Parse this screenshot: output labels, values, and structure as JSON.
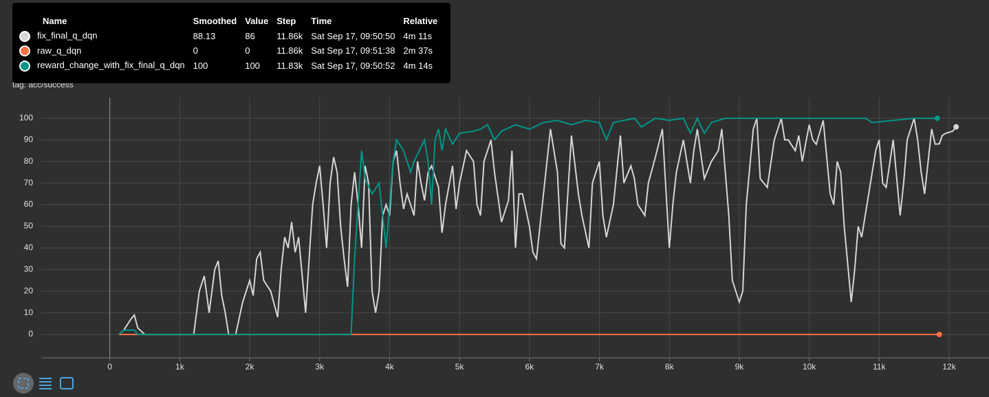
{
  "chart_data": {
    "type": "line",
    "title": "success",
    "subtitle": "tag: acc/success",
    "xlim": [
      -980,
      12570
    ],
    "ylim": [
      -10.8,
      109.5
    ],
    "xticks": [
      0,
      {
        "value": 1000,
        "label": "1k"
      },
      {
        "value": 2000,
        "label": "2k"
      },
      {
        "value": 3000,
        "label": "3k"
      },
      {
        "value": 4000,
        "label": "4k"
      },
      {
        "value": 5000,
        "label": "5k"
      },
      {
        "value": 6000,
        "label": "6k"
      },
      {
        "value": 7000,
        "label": "7k"
      },
      {
        "value": 8000,
        "label": "8k"
      },
      {
        "value": 9000,
        "label": "9k"
      },
      {
        "value": 10000,
        "label": "10k"
      },
      {
        "value": 11000,
        "label": "11k"
      },
      {
        "value": 12000,
        "label": "12k"
      }
    ],
    "yticks": [
      0,
      10,
      20,
      30,
      40,
      50,
      60,
      70,
      80,
      90,
      100
    ],
    "grid": true,
    "series": [
      {
        "name": "fix_final_q_dqn",
        "color": "#d6d6d6",
        "x": [
          130,
          200,
          300,
          350,
          400,
          500,
          1200,
          1280,
          1350,
          1420,
          1500,
          1550,
          1600,
          1650,
          1700,
          1800,
          1900,
          2000,
          2050,
          2100,
          2150,
          2200,
          2300,
          2400,
          2450,
          2500,
          2550,
          2600,
          2650,
          2700,
          2800,
          2850,
          2900,
          2950,
          3000,
          3050,
          3100,
          3150,
          3200,
          3250,
          3300,
          3350,
          3400,
          3450,
          3500,
          3550,
          3600,
          3650,
          3700,
          3750,
          3800,
          3850,
          3900,
          3950,
          4000,
          4050,
          4100,
          4150,
          4200,
          4250,
          4300,
          4350,
          4400,
          4450,
          4500,
          4550,
          4600,
          4700,
          4750,
          4800,
          4900,
          4950,
          5000,
          5100,
          5200,
          5250,
          5300,
          5350,
          5450,
          5500,
          5600,
          5700,
          5750,
          5800,
          5850,
          5900,
          6000,
          6050,
          6100,
          6200,
          6300,
          6400,
          6450,
          6500,
          6600,
          6700,
          6750,
          6850,
          6900,
          7000,
          7050,
          7100,
          7200,
          7300,
          7350,
          7450,
          7500,
          7550,
          7650,
          7700,
          7800,
          7900,
          8000,
          8050,
          8100,
          8200,
          8250,
          8300,
          8350,
          8400,
          8500,
          8600,
          8700,
          8750,
          8850,
          8900,
          9000,
          9050,
          9100,
          9200,
          9250,
          9300,
          9400,
          9500,
          9600,
          9650,
          9700,
          9800,
          9850,
          9900,
          10000,
          10050,
          10100,
          10200,
          10300,
          10350,
          10400,
          10450,
          10500,
          10600,
          10650,
          10700,
          10750,
          10800,
          10900,
          10950,
          11000,
          11050,
          11100,
          11200,
          11300,
          11350,
          11400,
          11500,
          11550,
          11600,
          11650,
          11750,
          11800,
          11860,
          11900,
          11950,
          12050,
          12100
        ],
        "values": [
          0,
          2,
          7,
          9,
          3,
          0,
          0,
          20,
          27,
          10,
          30,
          34,
          18,
          10,
          0,
          0,
          15,
          25,
          18,
          35,
          38,
          25,
          20,
          8,
          30,
          45,
          40,
          52,
          38,
          45,
          10,
          35,
          60,
          70,
          78,
          60,
          40,
          70,
          82,
          75,
          50,
          35,
          22,
          60,
          75,
          60,
          40,
          78,
          70,
          20,
          10,
          20,
          55,
          60,
          55,
          80,
          85,
          70,
          58,
          65,
          60,
          55,
          80,
          70,
          62,
          75,
          78,
          68,
          47,
          60,
          78,
          58,
          70,
          85,
          80,
          60,
          55,
          80,
          90,
          75,
          52,
          62,
          85,
          40,
          65,
          65,
          50,
          38,
          35,
          65,
          95,
          75,
          42,
          40,
          92,
          65,
          55,
          40,
          70,
          80,
          55,
          45,
          60,
          92,
          70,
          78,
          72,
          60,
          55,
          70,
          82,
          95,
          40,
          60,
          75,
          90,
          80,
          70,
          85,
          95,
          72,
          80,
          85,
          95,
          55,
          25,
          15,
          20,
          60,
          95,
          100,
          72,
          68,
          90,
          100,
          90,
          90,
          85,
          92,
          80,
          97,
          90,
          88,
          99,
          65,
          60,
          80,
          75,
          50,
          15,
          30,
          50,
          45,
          55,
          75,
          85,
          90,
          70,
          68,
          90,
          55,
          70,
          90,
          100,
          90,
          75,
          65,
          95,
          88,
          88.13,
          92,
          93,
          94,
          96
        ]
      },
      {
        "name": "raw_q_dqn",
        "color": "#ff7043",
        "x": [
          130,
          11860
        ],
        "values": [
          0,
          0
        ]
      },
      {
        "name": "reward_change_with_fix_final_q_dqn",
        "color": "#009688",
        "x": [
          130,
          200,
          350,
          400,
          3450,
          3500,
          3550,
          3600,
          3650,
          3750,
          3850,
          3900,
          3950,
          4050,
          4100,
          4200,
          4300,
          4350,
          4500,
          4550,
          4600,
          4650,
          4700,
          4750,
          4800,
          4900,
          5000,
          5200,
          5300,
          5400,
          5500,
          5600,
          5800,
          6000,
          6200,
          6400,
          6600,
          6800,
          7000,
          7100,
          7200,
          7500,
          7600,
          7800,
          8000,
          8200,
          8300,
          8400,
          8500,
          8600,
          8800,
          10800,
          10900,
          11200,
          11500,
          11830
        ],
        "values": [
          0,
          2,
          2,
          0,
          0,
          35,
          60,
          85,
          72,
          65,
          70,
          55,
          40,
          80,
          90,
          85,
          75,
          80,
          90,
          80,
          60,
          90,
          95,
          85,
          95,
          88,
          93,
          94,
          95,
          97,
          90,
          94,
          97,
          95,
          98,
          99,
          97,
          99,
          98,
          90,
          98,
          100,
          96,
          100,
          99,
          100,
          93,
          100,
          93,
          98,
          100,
          100,
          98,
          99,
          100,
          100
        ]
      }
    ]
  },
  "tooltip": {
    "headers": [
      "Name",
      "Smoothed",
      "Value",
      "Step",
      "Time",
      "Relative"
    ],
    "rows": [
      [
        "88.13",
        "86",
        "11.86k",
        "Sat Sep 17, 09:50:50",
        "4m 11s"
      ],
      [
        "0",
        "0",
        "11.86k",
        "Sat Sep 17, 09:51:38",
        "2m 37s"
      ],
      [
        "100",
        "100",
        "11.83k",
        "Sat Sep 17, 09:50:52",
        "4m 14s"
      ]
    ]
  }
}
